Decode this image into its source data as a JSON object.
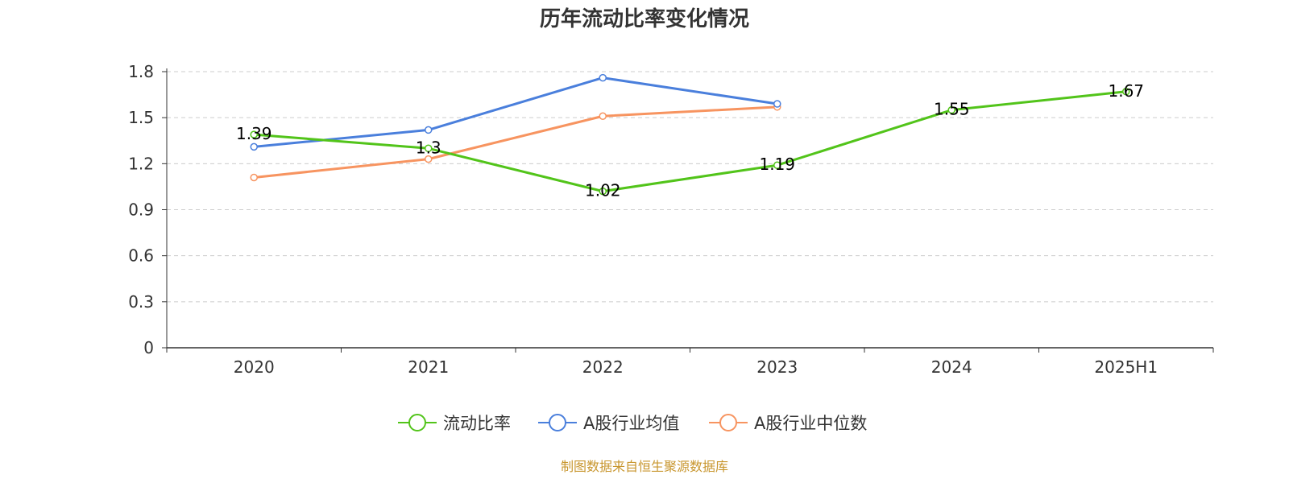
{
  "chart_data": {
    "type": "line",
    "title": "历年流动比率变化情况",
    "xlabel": "",
    "ylabel": "",
    "categories": [
      "2020",
      "2021",
      "2022",
      "2023",
      "2024",
      "2025H1"
    ],
    "ylim": [
      0,
      1.8
    ],
    "yticks": [
      "0",
      "0.3",
      "0.6",
      "0.9",
      "1.2",
      "1.5",
      "1.8"
    ],
    "grid": true,
    "legend_position": "bottom",
    "series": [
      {
        "name": "流动比率",
        "color": "#52c41a",
        "values": [
          1.39,
          1.3,
          1.02,
          1.19,
          1.55,
          1.67
        ],
        "labels": [
          "1.39",
          "1.3",
          "1.02",
          "1.19",
          "1.55",
          "1.67"
        ],
        "show_labels": true
      },
      {
        "name": "A股行业均值",
        "color": "#4a7fdc",
        "values": [
          1.31,
          1.42,
          1.76,
          1.59,
          null,
          null
        ],
        "show_labels": false
      },
      {
        "name": "A股行业中位数",
        "color": "#f79460",
        "values": [
          1.11,
          1.23,
          1.51,
          1.57,
          null,
          null
        ],
        "show_labels": false
      }
    ]
  },
  "source_note": "制图数据来自恒生聚源数据库"
}
